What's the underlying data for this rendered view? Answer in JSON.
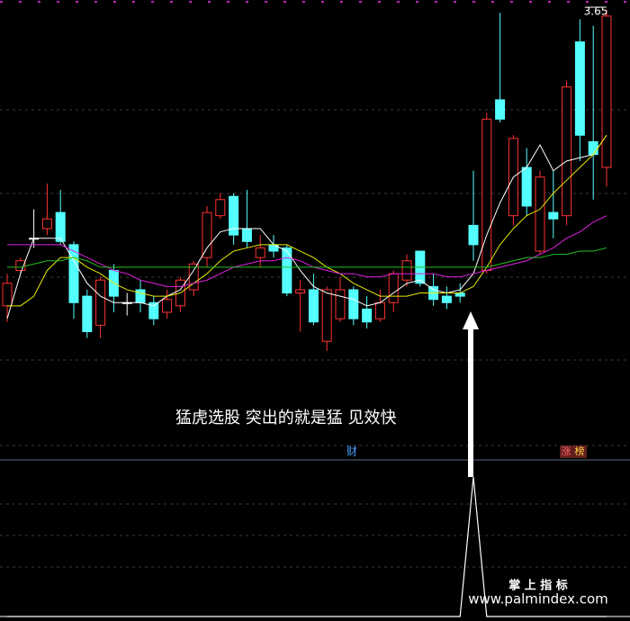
{
  "chart_data": {
    "type": "candlestick",
    "ylim": [
      2.45,
      3.68
    ],
    "up_color": "#ff3232",
    "down_color": "#54ffff",
    "flat_color": "#ffffff",
    "open": [
      2.73,
      2.84,
      2.94,
      2.97,
      3.02,
      2.92,
      2.76,
      2.67,
      2.84,
      2.74,
      2.78,
      2.74,
      2.71,
      2.73,
      2.78,
      2.88,
      3.01,
      3.07,
      2.97,
      2.88,
      2.92,
      2.91,
      2.77,
      2.78,
      2.62,
      2.69,
      2.78,
      2.72,
      2.69,
      2.74,
      2.81,
      2.9,
      2.79,
      2.76,
      2.77,
      2.98,
      2.84,
      3.37,
      3.01,
      3.16,
      2.9,
      3.02,
      3.01,
      3.55,
      3.24,
      3.16
    ],
    "high": [
      2.83,
      2.88,
      3.03,
      3.11,
      3.09,
      2.93,
      2.78,
      2.82,
      2.86,
      2.77,
      2.81,
      2.76,
      2.78,
      2.82,
      2.87,
      3.04,
      3.08,
      3.08,
      3.09,
      2.95,
      2.95,
      2.92,
      2.81,
      2.83,
      2.79,
      2.82,
      2.79,
      2.76,
      2.78,
      2.84,
      2.89,
      2.9,
      2.83,
      2.79,
      2.8,
      3.15,
      3.33,
      3.64,
      3.26,
      3.22,
      3.15,
      3.15,
      3.43,
      3.62,
      3.6,
      3.65
    ],
    "low": [
      2.68,
      2.83,
      2.91,
      2.95,
      2.92,
      2.69,
      2.63,
      2.63,
      2.71,
      2.7,
      2.71,
      2.67,
      2.69,
      2.71,
      2.76,
      2.85,
      3.0,
      2.92,
      2.91,
      2.85,
      2.88,
      2.76,
      2.65,
      2.67,
      2.59,
      2.68,
      2.67,
      2.66,
      2.68,
      2.71,
      2.79,
      2.79,
      2.73,
      2.72,
      2.74,
      2.87,
      2.83,
      3.3,
      2.98,
      3.01,
      2.89,
      2.94,
      2.98,
      3.18,
      3.06,
      3.1
    ],
    "close": [
      2.8,
      2.87,
      2.94,
      3.0,
      2.93,
      2.74,
      2.65,
      2.81,
      2.76,
      2.74,
      2.74,
      2.69,
      2.75,
      2.81,
      2.86,
      3.02,
      3.06,
      2.95,
      2.93,
      2.91,
      2.9,
      2.77,
      2.78,
      2.68,
      2.78,
      2.78,
      2.69,
      2.68,
      2.74,
      2.83,
      2.87,
      2.8,
      2.75,
      2.74,
      2.76,
      2.92,
      3.31,
      3.31,
      3.25,
      3.04,
      3.13,
      3.0,
      3.41,
      3.26,
      3.2,
      3.63
    ],
    "series": [
      {
        "color": "#ffffff",
        "values": [
          2.69,
          2.83,
          2.94,
          2.94,
          2.94,
          2.87,
          2.8,
          2.76,
          2.74,
          2.74,
          2.74,
          2.73,
          2.76,
          2.78,
          2.84,
          2.91,
          2.96,
          2.97,
          2.97,
          2.97,
          2.92,
          2.9,
          2.84,
          2.79,
          2.77,
          2.76,
          2.75,
          2.73,
          2.74,
          2.77,
          2.8,
          2.81,
          2.78,
          2.77,
          2.78,
          2.83,
          2.95,
          3.05,
          3.13,
          3.16,
          3.23,
          3.15,
          3.18,
          3.19,
          3.2,
          3.26
        ]
      },
      {
        "color": "#e8e800",
        "values": [
          2.73,
          2.73,
          2.76,
          2.84,
          2.88,
          2.88,
          2.85,
          2.83,
          2.8,
          2.78,
          2.77,
          2.76,
          2.76,
          2.77,
          2.8,
          2.83,
          2.87,
          2.9,
          2.91,
          2.92,
          2.92,
          2.92,
          2.9,
          2.88,
          2.85,
          2.83,
          2.8,
          2.78,
          2.76,
          2.76,
          2.76,
          2.77,
          2.77,
          2.77,
          2.77,
          2.79,
          2.85,
          2.92,
          2.97,
          3.01,
          3.03,
          3.08,
          3.12,
          3.16,
          3.2,
          3.26
        ]
      },
      {
        "color": "#e020e0",
        "values": [
          2.92,
          2.92,
          2.92,
          2.92,
          2.92,
          2.9,
          2.88,
          2.86,
          2.84,
          2.83,
          2.81,
          2.8,
          2.79,
          2.79,
          2.8,
          2.81,
          2.83,
          2.85,
          2.86,
          2.87,
          2.87,
          2.88,
          2.87,
          2.85,
          2.84,
          2.83,
          2.83,
          2.82,
          2.82,
          2.83,
          2.83,
          2.83,
          2.83,
          2.82,
          2.82,
          2.83,
          2.84,
          2.85,
          2.86,
          2.87,
          2.89,
          2.91,
          2.94,
          2.96,
          2.99,
          3.01
        ]
      },
      {
        "color": "#20c020",
        "values": [
          2.85,
          2.85,
          2.86,
          2.87,
          2.87,
          2.88,
          2.87,
          2.85,
          2.85,
          2.85,
          2.85,
          2.85,
          2.85,
          2.85,
          2.85,
          2.85,
          2.85,
          2.85,
          2.85,
          2.85,
          2.85,
          2.85,
          2.85,
          2.85,
          2.85,
          2.85,
          2.85,
          2.85,
          2.85,
          2.85,
          2.85,
          2.85,
          2.85,
          2.85,
          2.85,
          2.85,
          2.85,
          2.86,
          2.87,
          2.88,
          2.88,
          2.89,
          2.89,
          2.9,
          2.9,
          2.91
        ]
      }
    ],
    "max_label": 3.65,
    "annotation": "猛虎选股 突出的就是猛 见效快",
    "tags": [
      "财",
      "涨",
      "榜"
    ],
    "indicator": {
      "color": "#ffffff",
      "ylim": [
        0,
        1
      ],
      "values": [
        0,
        0,
        0,
        0,
        0,
        0,
        0,
        0,
        0,
        0,
        0,
        0,
        0,
        0,
        0,
        0,
        0,
        0,
        0,
        0,
        0,
        0,
        0,
        0,
        0,
        0,
        0,
        0,
        0,
        0,
        0,
        0,
        0,
        0,
        0,
        1,
        0,
        0,
        0,
        0,
        0,
        0,
        0,
        0,
        0,
        0
      ]
    },
    "watermark": [
      "掌 上 指 标",
      "www.palmindex.com"
    ]
  }
}
